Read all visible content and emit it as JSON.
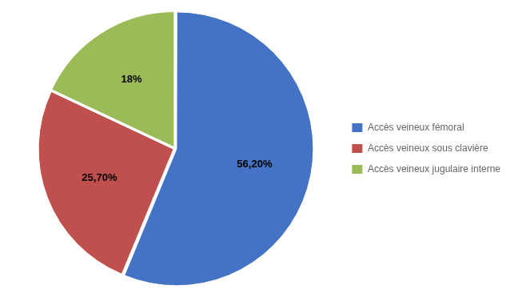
{
  "chart_data": {
    "type": "pie",
    "categories": [
      "Accès veineux fémoral",
      "Accès veineux sous clavière",
      "Accès veineux jugulaire interne"
    ],
    "values": [
      56.2,
      25.7,
      18.0
    ],
    "value_labels": [
      "56,20%",
      "25,70%",
      "18%"
    ],
    "colors": [
      "#4472C4",
      "#C0504D",
      "#9BBB59"
    ],
    "data_labels": true,
    "legend": "right"
  }
}
